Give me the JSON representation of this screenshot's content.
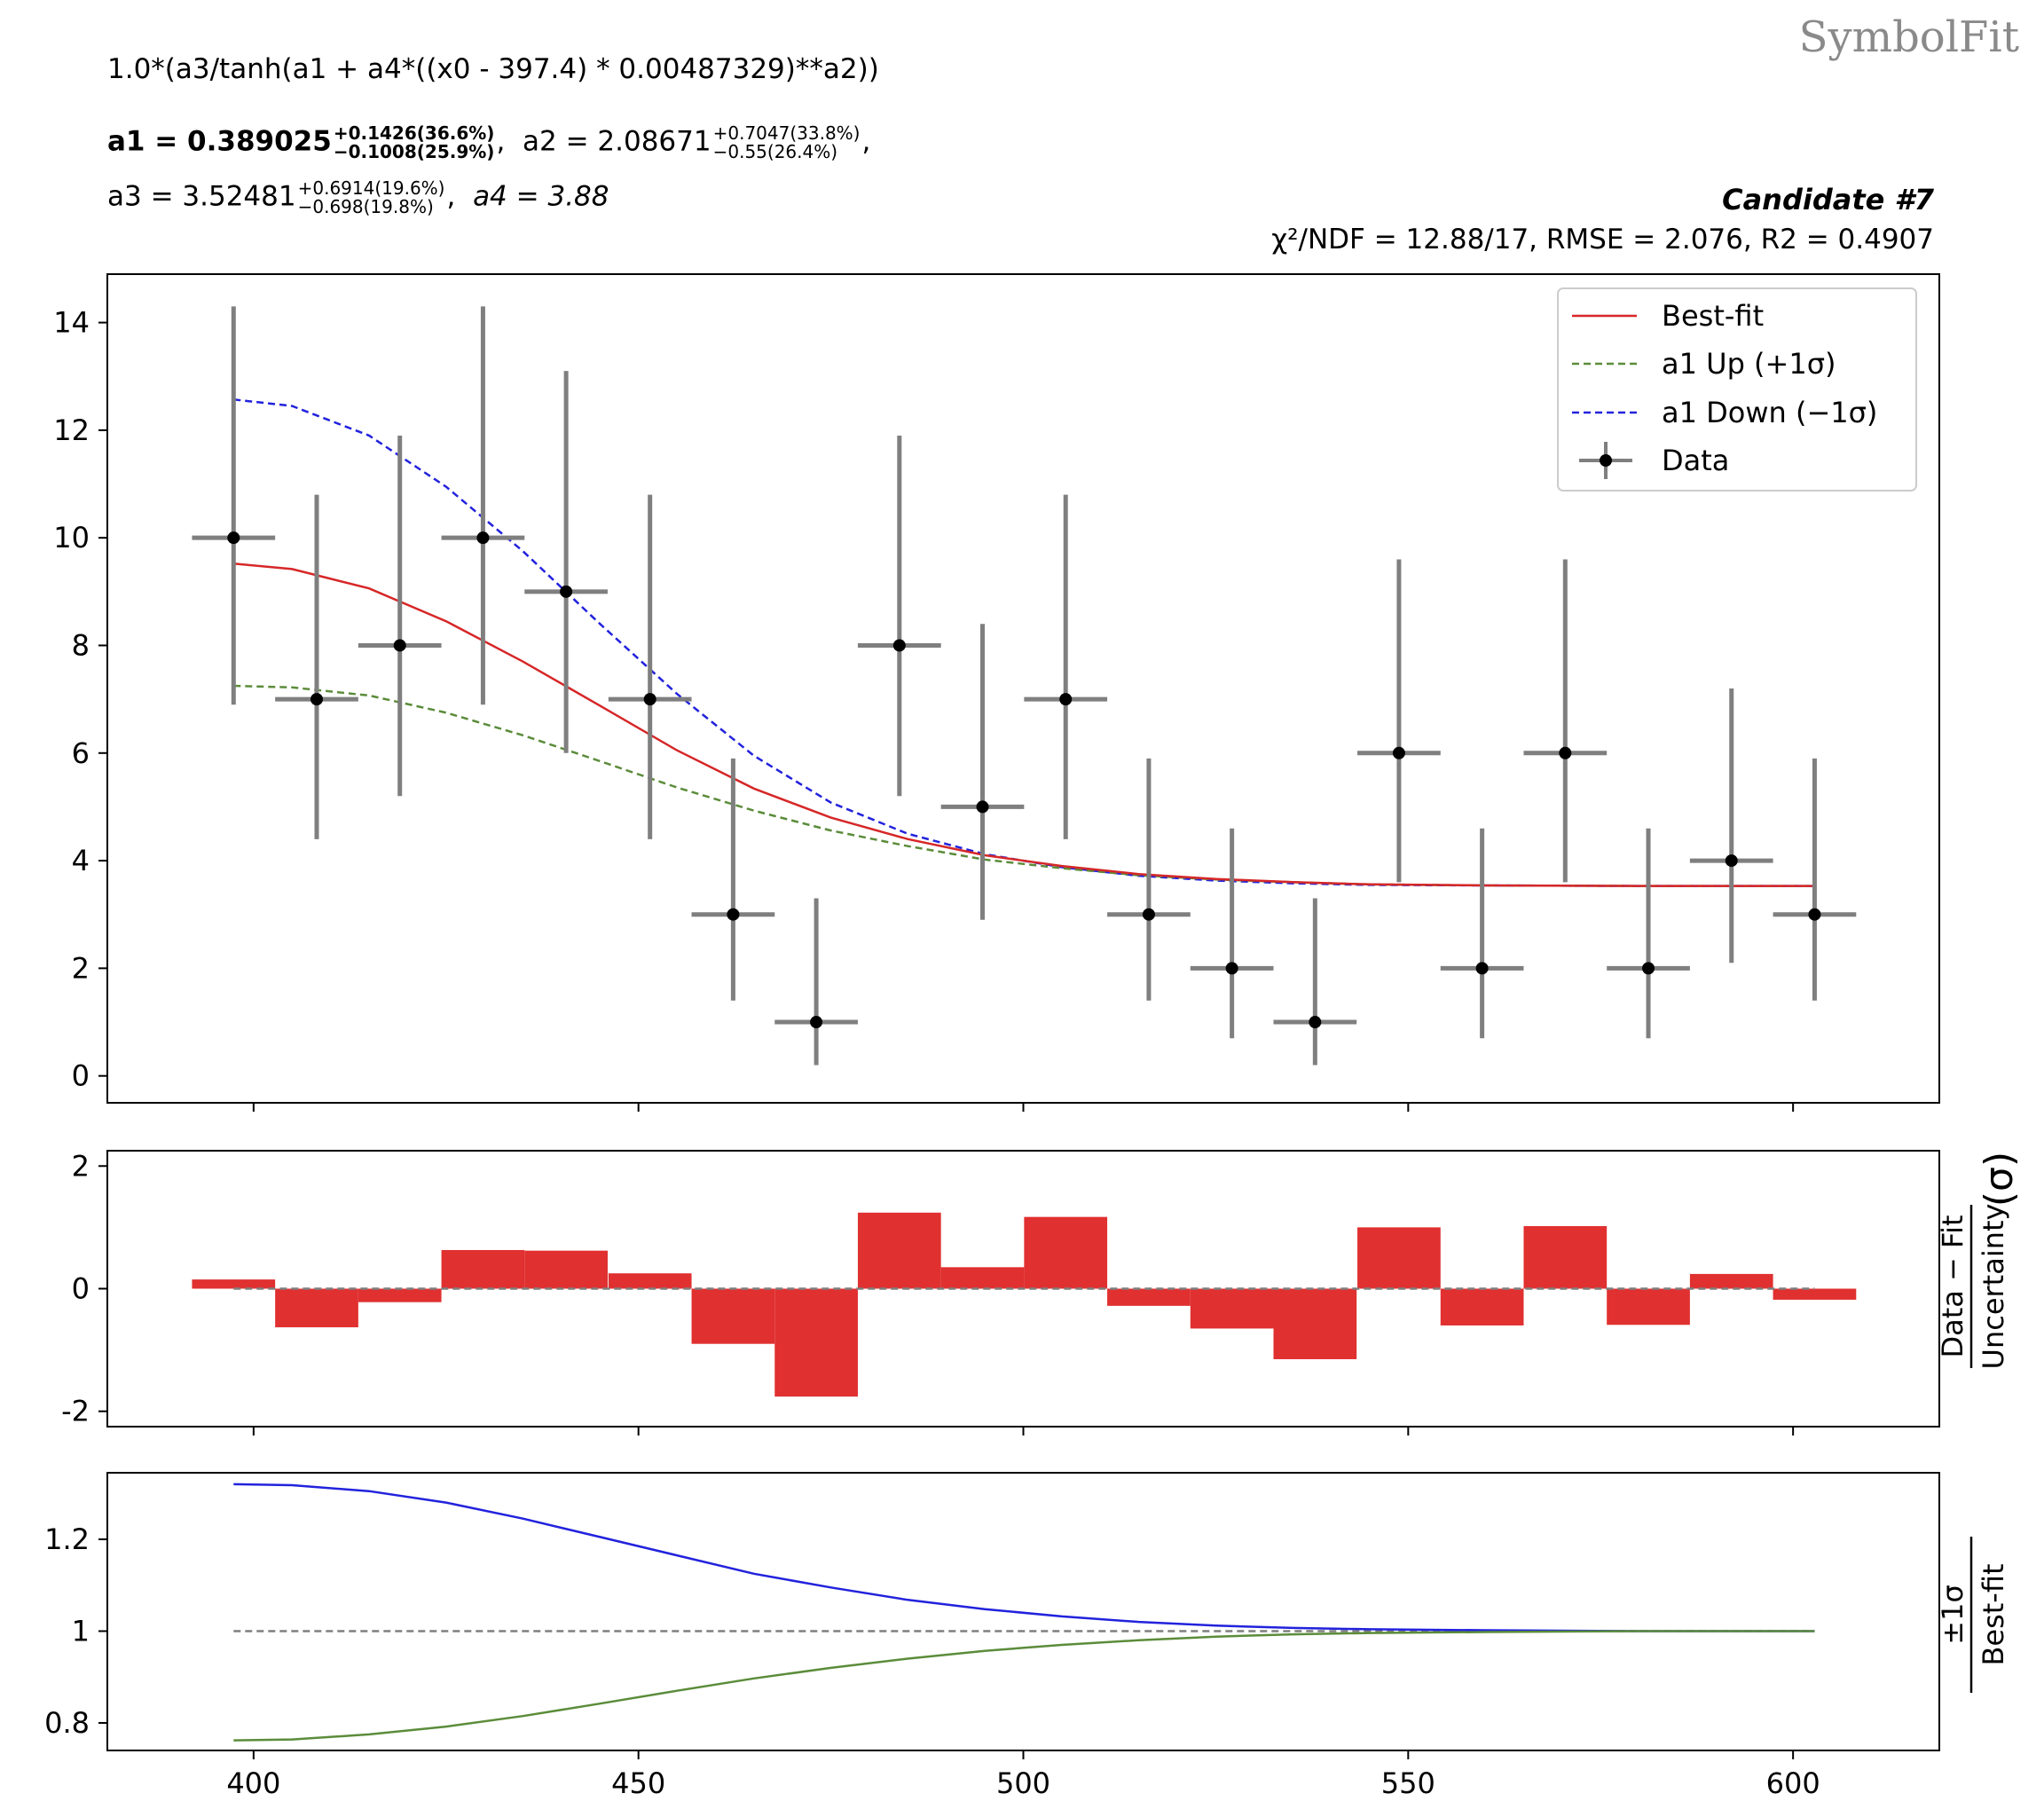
{
  "brand": "SymbolFit",
  "formula": "1.0*(a3/tanh(a1 + a4*((x0 - 397.4) * 0.00487329)**a2))",
  "params": {
    "a1_label": "a1 = 0.389025",
    "a1_up": "+0.1426(36.6%)",
    "a1_down": "−0.1008(25.9%)",
    "a2_label": "a2 = 2.08671",
    "a2_up": "+0.7047(33.8%)",
    "a2_down": "−0.55(26.4%)",
    "a3_label": "a3 = 3.52481",
    "a3_up": "+0.6914(19.6%)",
    "a3_down": "−0.698(19.8%)",
    "a4_label": "a4 = 3.88"
  },
  "candidate": "Candidate #7",
  "stats": "χ²/NDF = 12.88/17, RMSE = 2.076, R2 = 0.4907",
  "colors": {
    "best_fit": "#d62728",
    "up": "#5b8c3a",
    "down": "#2222dd",
    "data": "#000000",
    "errorbar": "#7f7f7f",
    "residual": "#e03030"
  },
  "chart_data": [
    {
      "type": "scatter",
      "panel": "main",
      "xlim": [
        381,
        619
      ],
      "ylim": [
        -0.5,
        14.9
      ],
      "yticks": [
        0,
        2,
        4,
        6,
        8,
        10,
        12,
        14
      ],
      "legend": [
        "Best-fit",
        "a1 Up (+1σ)",
        "a1 Down (−1σ)",
        "Data"
      ],
      "legend_position": "top-right",
      "data": {
        "x": [
          397.4,
          408.2,
          419.0,
          429.8,
          440.6,
          451.5,
          462.3,
          473.1,
          483.9,
          494.7,
          505.5,
          516.3,
          527.1,
          537.9,
          548.8,
          559.6,
          570.4,
          581.2,
          592.0,
          602.8
        ],
        "xerr": 5.4,
        "y": [
          10,
          7,
          8,
          10,
          9,
          7,
          3,
          1,
          8,
          5,
          7,
          3,
          2,
          1,
          6,
          2,
          6,
          2,
          4,
          3
        ],
        "yerr_low": [
          3.1,
          2.6,
          2.8,
          3.1,
          3.0,
          2.6,
          1.6,
          0.8,
          2.8,
          2.1,
          2.6,
          1.6,
          1.3,
          0.8,
          2.4,
          1.3,
          2.4,
          1.3,
          1.9,
          1.6
        ],
        "yerr_high": [
          4.3,
          3.8,
          3.9,
          4.3,
          4.1,
          3.8,
          2.9,
          2.3,
          3.9,
          3.4,
          3.8,
          2.9,
          2.6,
          2.3,
          3.6,
          2.6,
          3.6,
          2.6,
          3.2,
          2.9
        ]
      },
      "series": [
        {
          "name": "Best-fit",
          "x": [
            397.4,
            405,
            415,
            425,
            435,
            445,
            455,
            465,
            475,
            485,
            495,
            505,
            515,
            525,
            535,
            545,
            560,
            580,
            602.8
          ],
          "y": [
            9.52,
            9.42,
            9.06,
            8.45,
            7.7,
            6.88,
            6.05,
            5.34,
            4.8,
            4.4,
            4.1,
            3.9,
            3.75,
            3.66,
            3.6,
            3.56,
            3.54,
            3.53,
            3.53
          ]
        },
        {
          "name": "a1 Up (+1σ)",
          "x": [
            397.4,
            405,
            415,
            425,
            435,
            445,
            455,
            465,
            475,
            485,
            495,
            505,
            515,
            525,
            535,
            545,
            560,
            580,
            602.8
          ],
          "y": [
            7.25,
            7.22,
            7.07,
            6.75,
            6.33,
            5.85,
            5.36,
            4.93,
            4.56,
            4.27,
            4.02,
            3.86,
            3.73,
            3.65,
            3.6,
            3.56,
            3.54,
            3.53,
            3.53
          ]
        },
        {
          "name": "a1 Down (−1σ)",
          "x": [
            397.4,
            405,
            415,
            425,
            435,
            445,
            455,
            465,
            475,
            485,
            495,
            505,
            515,
            525,
            535,
            545,
            560,
            580,
            602.8
          ],
          "y": [
            12.57,
            12.45,
            11.9,
            10.95,
            9.75,
            8.4,
            7.1,
            5.95,
            5.08,
            4.5,
            4.12,
            3.88,
            3.72,
            3.63,
            3.58,
            3.55,
            3.54,
            3.53,
            3.53
          ]
        }
      ]
    },
    {
      "type": "bar",
      "panel": "residual",
      "ylabel": "Data − Fit / Uncertainty (σ)",
      "ylim": [
        -2.25,
        2.25
      ],
      "yticks": [
        -2,
        0,
        2
      ],
      "x": [
        397.4,
        408.2,
        419.0,
        429.8,
        440.6,
        451.5,
        462.3,
        473.1,
        483.9,
        494.7,
        505.5,
        516.3,
        527.1,
        537.9,
        548.8,
        559.6,
        570.4,
        581.2,
        592.0,
        602.8
      ],
      "values": [
        0.15,
        -0.63,
        -0.22,
        0.63,
        0.62,
        0.25,
        -0.9,
        -1.76,
        1.24,
        0.35,
        1.17,
        -0.28,
        -0.65,
        -1.15,
        1.0,
        -0.6,
        1.02,
        -0.59,
        0.24,
        -0.18
      ]
    },
    {
      "type": "line",
      "panel": "ratio",
      "ylabel": "±1σ / Best-fit",
      "ylim": [
        0.74,
        1.345
      ],
      "yticks": [
        0.8,
        1,
        1.2
      ],
      "ytick_labels": [
        "0.8",
        "1",
        "1.2"
      ],
      "xticks": [
        400,
        450,
        500,
        550,
        600
      ],
      "series": [
        {
          "name": "a1 Down (−1σ)",
          "x": [
            397.4,
            405,
            415,
            425,
            435,
            445,
            455,
            465,
            475,
            485,
            495,
            505,
            515,
            525,
            535,
            545,
            560,
            580,
            602.8
          ],
          "y": [
            1.32,
            1.318,
            1.305,
            1.28,
            1.245,
            1.205,
            1.165,
            1.125,
            1.095,
            1.068,
            1.048,
            1.032,
            1.02,
            1.012,
            1.007,
            1.004,
            1.002,
            1.0,
            1.0
          ]
        },
        {
          "name": "a1 Up (+1σ)",
          "x": [
            397.4,
            405,
            415,
            425,
            435,
            445,
            455,
            465,
            475,
            485,
            495,
            505,
            515,
            525,
            535,
            545,
            560,
            580,
            602.8
          ],
          "y": [
            0.762,
            0.764,
            0.775,
            0.792,
            0.815,
            0.842,
            0.87,
            0.897,
            0.92,
            0.94,
            0.957,
            0.97,
            0.98,
            0.988,
            0.993,
            0.996,
            0.998,
            1.0,
            1.0
          ]
        }
      ]
    }
  ]
}
